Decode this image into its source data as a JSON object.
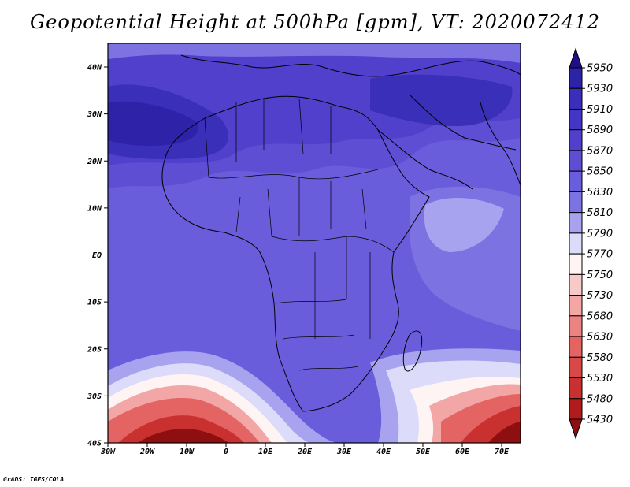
{
  "title": "Geopotential Height at 500hPa [gpm], VT: 2020072412",
  "credit": "GrADS: IGES/COLA",
  "map": {
    "lon_ticks": [
      "30W",
      "20W",
      "10W",
      "0",
      "10E",
      "20E",
      "30E",
      "40E",
      "50E",
      "60E",
      "70E"
    ],
    "lat_ticks": [
      "40N",
      "30N",
      "20N",
      "10N",
      "EQ",
      "10S",
      "20S",
      "30S",
      "40S"
    ]
  },
  "colorbar": {
    "levels": [
      "5950",
      "5930",
      "5910",
      "5890",
      "5870",
      "5850",
      "5830",
      "5810",
      "5790",
      "5770",
      "5750",
      "5730",
      "5680",
      "5630",
      "5580",
      "5530",
      "5480",
      "5430"
    ],
    "colors": [
      "#1e0e8c",
      "#2e22a8",
      "#3a2fb8",
      "#4435c4",
      "#5040cc",
      "#5d4ed4",
      "#6a5ddb",
      "#7d72e2",
      "#a7a3ee",
      "#dcdcfa",
      "#fff4f4",
      "#f7c9c9",
      "#f2a6a6",
      "#ec8383",
      "#e46464",
      "#d94848",
      "#c93030",
      "#b01c1c",
      "#8e0f0f"
    ]
  }
}
